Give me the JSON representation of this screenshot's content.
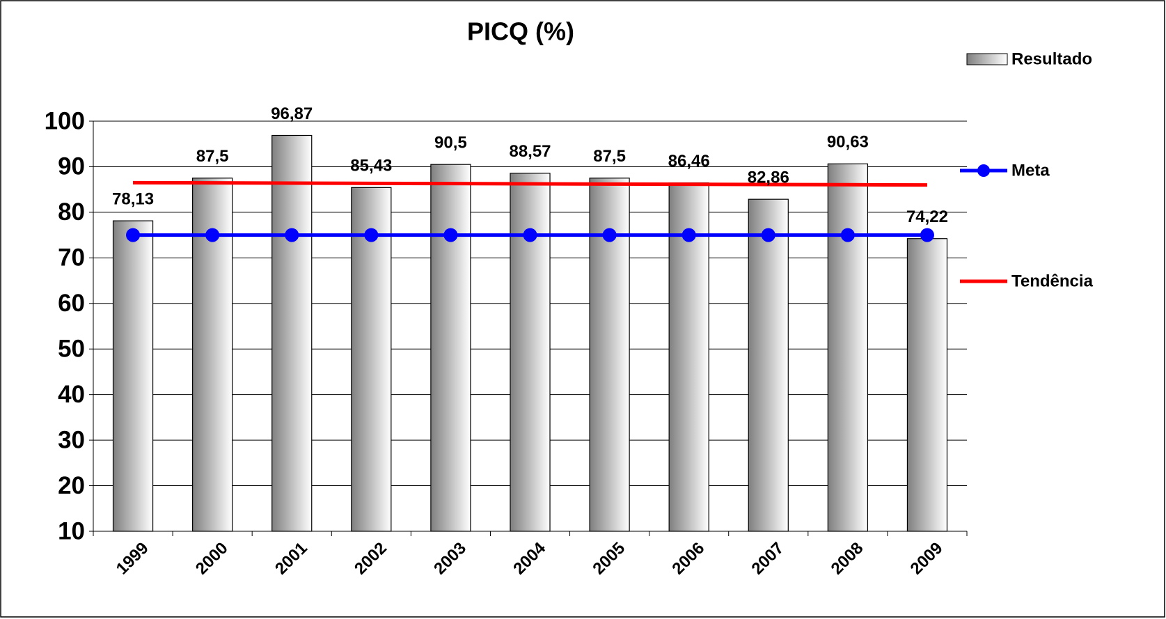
{
  "chart_data": {
    "type": "bar",
    "title": "PICQ (%)",
    "categories": [
      "1999",
      "2000",
      "2001",
      "2002",
      "2003",
      "2004",
      "2005",
      "2006",
      "2007",
      "2008",
      "2009"
    ],
    "series": [
      {
        "name": "Resultado",
        "type": "bar",
        "color": "#7f7f7f",
        "values": [
          78.13,
          87.5,
          96.87,
          85.43,
          90.5,
          88.57,
          87.5,
          86.46,
          82.86,
          90.63,
          74.22
        ],
        "value_labels": [
          "78,13",
          "87,5",
          "96,87",
          "85,43",
          "90,5",
          "88,57",
          "87,5",
          "86,46",
          "82,86",
          "90,63",
          "74,22"
        ]
      },
      {
        "name": "Meta",
        "type": "line",
        "color": "#0000ff",
        "marker": true,
        "values": [
          75,
          75,
          75,
          75,
          75,
          75,
          75,
          75,
          75,
          75,
          75
        ]
      },
      {
        "name": "Tendência",
        "type": "line",
        "color": "#ff0000",
        "marker": false,
        "values": [
          86.5,
          86.45,
          86.4,
          86.35,
          86.3,
          86.25,
          86.2,
          86.15,
          86.1,
          86.05,
          86.0
        ]
      }
    ],
    "ylim": [
      10,
      100
    ],
    "yticks": [
      10,
      20,
      30,
      40,
      50,
      60,
      70,
      80,
      90,
      100
    ],
    "grid": true,
    "legend": "right"
  }
}
